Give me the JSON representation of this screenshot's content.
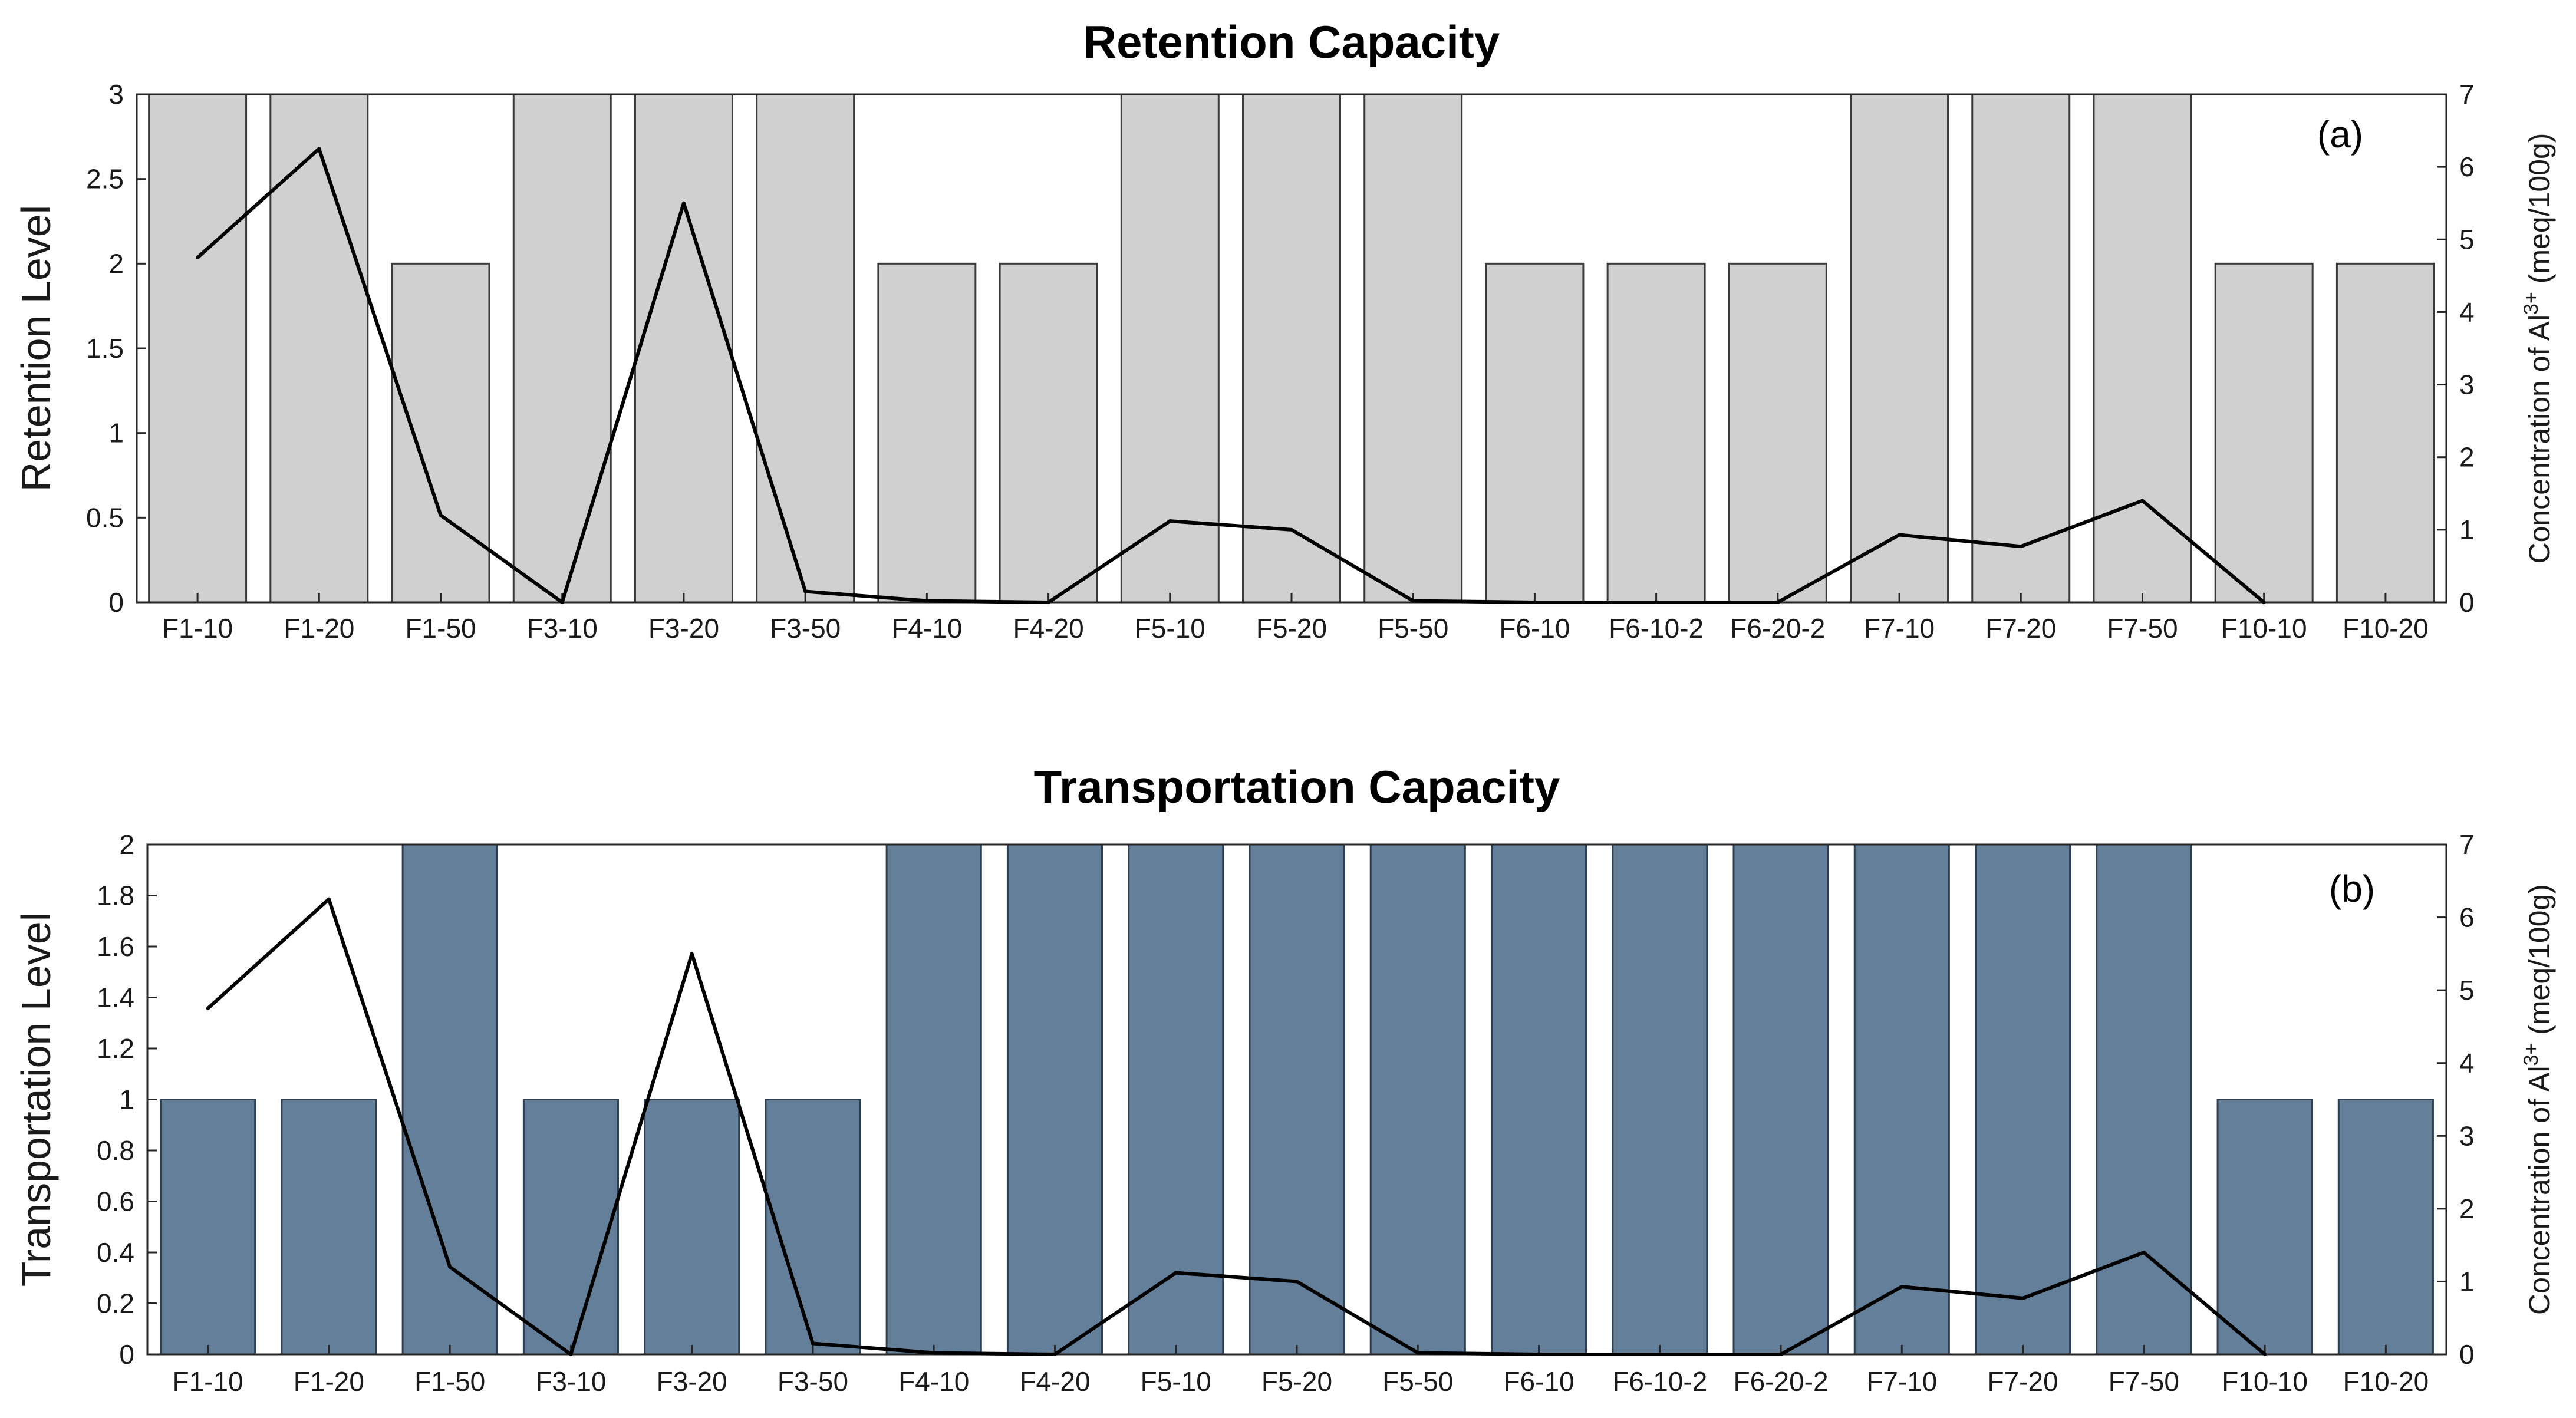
{
  "chart_data": [
    {
      "type": "bar",
      "panel": "a",
      "panel_label": "(a)",
      "title": "Retention Capacity",
      "ylabel": "Retention Level",
      "ylabel_right": "Concentration of Al3+ (meq/100g)",
      "ylabel_right_parts": {
        "pre": "Concentration of Al",
        "sup": "3+",
        "post": " (meq/100g)"
      },
      "ylim": [
        0,
        3
      ],
      "yticks": [
        "0",
        "0.5",
        "1",
        "1.5",
        "2",
        "2.5",
        "3"
      ],
      "yticks_values": [
        0,
        0.5,
        1,
        1.5,
        2,
        2.5,
        3
      ],
      "ylim_right": [
        0,
        7
      ],
      "yticks_right": [
        "0",
        "1",
        "2",
        "3",
        "4",
        "5",
        "6",
        "7"
      ],
      "yticks_right_values": [
        0,
        1,
        2,
        3,
        4,
        5,
        6,
        7
      ],
      "bar_color": "#d0d0d0",
      "bar_edge_color": "#3a3a3a",
      "line_color": "#000000",
      "categories": [
        "F1-10",
        "F1-20",
        "F1-50",
        "F3-10",
        "F3-20",
        "F3-50",
        "F4-10",
        "F4-20",
        "F5-10",
        "F5-20",
        "F5-50",
        "F6-10",
        "F6-10-2",
        "F6-20-2",
        "F7-10",
        "F7-20",
        "F7-50",
        "F10-10",
        "F10-20"
      ],
      "series": [
        {
          "name": "Retention Level",
          "axis": "left",
          "kind": "bar",
          "values": [
            3,
            3,
            2,
            3,
            3,
            3,
            2,
            2,
            3,
            3,
            3,
            2,
            2,
            2,
            3,
            3,
            3,
            2,
            2
          ]
        },
        {
          "name": "Concentration of Al3+",
          "axis": "right",
          "kind": "line",
          "values": [
            4.75,
            6.25,
            1.2,
            0,
            5.5,
            0.15,
            0.02,
            0,
            1.12,
            1.0,
            0.02,
            0,
            0,
            0,
            0.93,
            0.77,
            1.4,
            0,
            null
          ]
        }
      ]
    },
    {
      "type": "bar",
      "panel": "b",
      "panel_label": "(b)",
      "title": "Transportation Capacity",
      "ylabel": "Transportation Level",
      "ylabel_right": "Concentration of Al3+ (meq/100g)",
      "ylabel_right_parts": {
        "pre": "Concentration of Al",
        "sup": "3+",
        "post": " (meq/100g)"
      },
      "ylim": [
        0,
        2
      ],
      "yticks": [
        "0",
        "0.2",
        "0.4",
        "0.6",
        "0.8",
        "1",
        "1.2",
        "1.4",
        "1.6",
        "1.8",
        "2"
      ],
      "yticks_values": [
        0,
        0.2,
        0.4,
        0.6,
        0.8,
        1,
        1.2,
        1.4,
        1.6,
        1.8,
        2
      ],
      "ylim_right": [
        0,
        7
      ],
      "yticks_right": [
        "0",
        "1",
        "2",
        "3",
        "4",
        "5",
        "6",
        "7"
      ],
      "yticks_right_values": [
        0,
        1,
        2,
        3,
        4,
        5,
        6,
        7
      ],
      "bar_color": "#647f99",
      "bar_edge_color": "#2c3e50",
      "line_color": "#000000",
      "categories": [
        "F1-10",
        "F1-20",
        "F1-50",
        "F3-10",
        "F3-20",
        "F3-50",
        "F4-10",
        "F4-20",
        "F5-10",
        "F5-20",
        "F5-50",
        "F6-10",
        "F6-10-2",
        "F6-20-2",
        "F7-10",
        "F7-20",
        "F7-50",
        "F10-10",
        "F10-20"
      ],
      "series": [
        {
          "name": "Transportation Level",
          "axis": "left",
          "kind": "bar",
          "values": [
            1,
            1,
            2,
            1,
            1,
            1,
            2,
            2,
            2,
            2,
            2,
            2,
            2,
            2,
            2,
            2,
            2,
            1,
            1
          ]
        },
        {
          "name": "Concentration of Al3+",
          "axis": "right",
          "kind": "line",
          "values": [
            4.75,
            6.25,
            1.2,
            0,
            5.5,
            0.15,
            0.02,
            0,
            1.12,
            1.0,
            0.02,
            0,
            0,
            0,
            0.93,
            0.77,
            1.4,
            0,
            null
          ]
        }
      ]
    }
  ]
}
